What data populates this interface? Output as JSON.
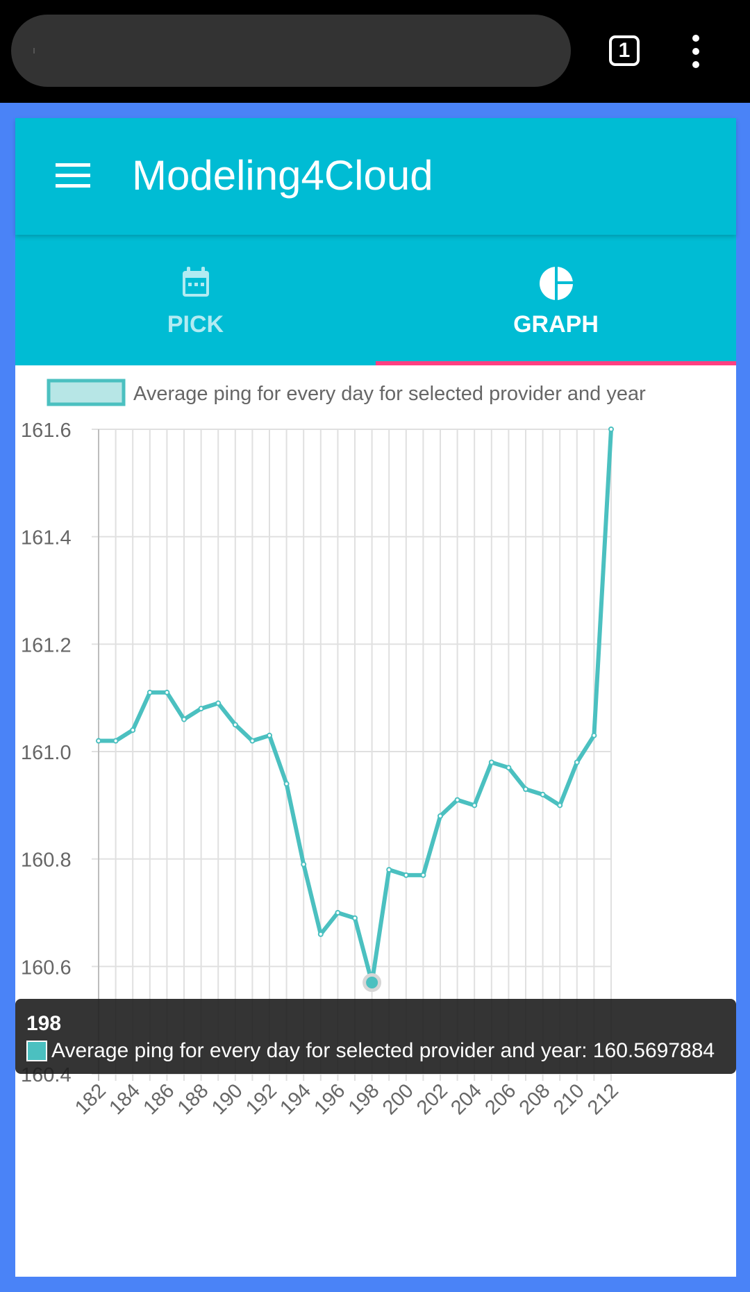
{
  "browser": {
    "tab_count": "1",
    "url_text": "",
    "overflow_menu_icon": "more-vert-icon"
  },
  "app": {
    "title": "Modeling4Cloud",
    "menu_icon": "hamburger-menu-icon",
    "color_primary": "#00bcd4",
    "color_accent": "#ff4081"
  },
  "tabs": [
    {
      "label": "PICK",
      "icon": "calendar-icon",
      "active": false
    },
    {
      "label": "GRAPH",
      "icon": "pie-chart-icon",
      "active": true
    }
  ],
  "chart_data": {
    "type": "line",
    "legend": {
      "label": "Average ping for every day for selected provider and year",
      "position": "top"
    },
    "x": [
      182,
      183,
      184,
      185,
      186,
      187,
      188,
      189,
      190,
      191,
      192,
      193,
      194,
      195,
      196,
      197,
      198,
      199,
      200,
      201,
      202,
      203,
      204,
      205,
      206,
      207,
      208,
      209,
      210,
      211,
      212
    ],
    "x_tick_labels": [
      "182",
      "184",
      "186",
      "188",
      "190",
      "192",
      "194",
      "196",
      "198",
      "200",
      "202",
      "204",
      "206",
      "208",
      "210",
      "212"
    ],
    "series": [
      {
        "name": "Average ping for every day for selected provider and year",
        "color": "#4bc0c0",
        "values": [
          161.02,
          161.02,
          161.04,
          161.11,
          161.11,
          161.06,
          161.08,
          161.09,
          161.05,
          161.02,
          161.03,
          160.94,
          160.79,
          160.66,
          160.7,
          160.69,
          160.57,
          160.78,
          160.77,
          160.77,
          160.88,
          160.91,
          160.9,
          160.98,
          160.97,
          160.93,
          160.92,
          160.9,
          160.98,
          161.03,
          161.6
        ]
      }
    ],
    "ylim": [
      160.4,
      161.6
    ],
    "y_ticks": [
      "161.6",
      "161.4",
      "161.2",
      "161.0",
      "160.8",
      "160.6",
      "160.4"
    ],
    "grid": true,
    "tooltip": {
      "title": "198",
      "body": "Average ping for every day for selected provider and year: 160.5697884",
      "active_x": 198
    }
  }
}
